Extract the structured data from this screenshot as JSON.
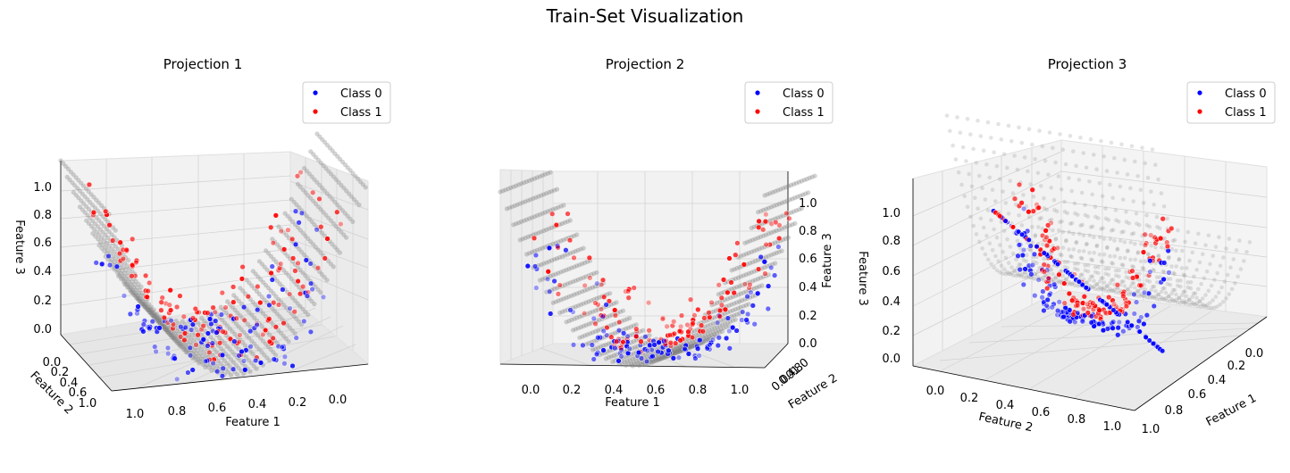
{
  "figure": {
    "title": "Train-Set Visualization"
  },
  "colors": {
    "class0": "#0000ff",
    "class1": "#ff0000",
    "surface": "#808080",
    "pane": "#f2f2f2",
    "grid": "#d0d0d0"
  },
  "chart_data": [
    {
      "type": "scatter",
      "title": "Projection 1",
      "view": "elev≈10, azim≈120 (Feature 1 axis reversed)",
      "xlabel": "Feature 1",
      "ylabel": "Feature 2",
      "zlabel": "Feature 3",
      "xlim": [
        0,
        1
      ],
      "ylim": [
        0,
        1
      ],
      "zlim": [
        0,
        1
      ],
      "xticks": [
        "0.0",
        "0.2",
        "0.4",
        "0.6",
        "0.8",
        "1.0"
      ],
      "yticks": [
        "0.0",
        "0.2",
        "0.4",
        "0.6",
        "0.8",
        "1.0"
      ],
      "zticks": [
        "0.0",
        "0.2",
        "0.4",
        "0.6",
        "0.8",
        "1.0"
      ],
      "legend": {
        "placement": "upper-right",
        "entries": [
          "Class 0",
          "Class 1"
        ]
      },
      "series": [
        {
          "name": "Class 0",
          "color": "#0000ff",
          "description": "points below the curved surface"
        },
        {
          "name": "Class 1",
          "color": "#ff0000",
          "description": "points above the curved surface"
        }
      ],
      "surface": {
        "color": "#808080",
        "shape": "parabolic trough, z ≈ 4·(x−0.5)²"
      },
      "grid": true
    },
    {
      "type": "scatter",
      "title": "Projection 2",
      "view": "elev≈0, azim≈-90 (front view along Feature 2)",
      "xlabel": "Feature 1",
      "ylabel": "Feature 2",
      "zlabel": "Feature 3",
      "xlim": [
        0,
        1
      ],
      "ylim": [
        0,
        1
      ],
      "zlim": [
        0,
        1
      ],
      "xticks": [
        "0.0",
        "0.2",
        "0.4",
        "0.6",
        "0.8",
        "1.0"
      ],
      "yticks": [
        "0.0",
        "0.2",
        "0.4",
        "0.6",
        "0.8",
        "1.0"
      ],
      "zticks": [
        "0.0",
        "0.2",
        "0.4",
        "0.6",
        "0.8",
        "1.0"
      ],
      "legend": {
        "placement": "upper-right",
        "entries": [
          "Class 0",
          "Class 1"
        ]
      },
      "series": [
        {
          "name": "Class 0",
          "color": "#0000ff"
        },
        {
          "name": "Class 1",
          "color": "#ff0000"
        }
      ],
      "surface": {
        "color": "#808080",
        "shape": "parabolic trough, z ≈ 4·(x−0.5)²"
      },
      "grid": true
    },
    {
      "type": "scatter",
      "title": "Projection 3",
      "view": "elev≈20, azim≈-135 (points project onto a line)",
      "xlabel": "Feature 1",
      "ylabel": "Feature 2",
      "zlabel": "Feature 3",
      "xlim": [
        0,
        1
      ],
      "ylim": [
        0,
        1
      ],
      "zlim": [
        0,
        1
      ],
      "xticks": [
        "0.0",
        "0.2",
        "0.4",
        "0.6",
        "0.8",
        "1.0"
      ],
      "yticks": [
        "0.0",
        "0.2",
        "0.4",
        "0.6",
        "0.8",
        "1.0"
      ],
      "zticks": [
        "0.0",
        "0.2",
        "0.4",
        "0.6",
        "0.8",
        "1.0"
      ],
      "legend": {
        "placement": "upper-right",
        "entries": [
          "Class 0",
          "Class 1"
        ]
      },
      "series": [
        {
          "name": "Class 0",
          "color": "#0000ff"
        },
        {
          "name": "Class 1",
          "color": "#ff0000"
        }
      ],
      "surface": {
        "color": "#808080",
        "shape": "parabolic trough, z ≈ 4·(x−0.5)²"
      },
      "grid": true
    }
  ]
}
